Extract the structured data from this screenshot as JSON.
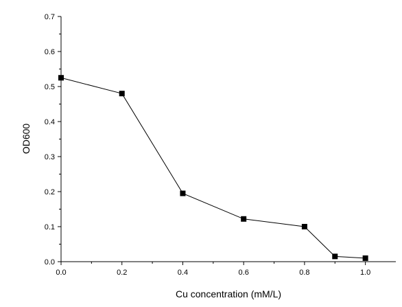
{
  "chart_data": {
    "type": "line",
    "title": "",
    "xlabel": "Cu concentration (mM/L)",
    "ylabel": "OD600",
    "xlim": [
      0.0,
      1.1
    ],
    "ylim": [
      0.0,
      0.7
    ],
    "x_ticks": [
      "0.0",
      "0.2",
      "0.4",
      "0.6",
      "0.8",
      "1.0"
    ],
    "y_ticks": [
      "0.0",
      "0.1",
      "0.2",
      "0.3",
      "0.4",
      "0.5",
      "0.6",
      "0.7"
    ],
    "grid": false,
    "legend": "none",
    "series": [
      {
        "marker": "square",
        "color": "#000000",
        "x": [
          0.0,
          0.2,
          0.4,
          0.6,
          0.8,
          0.9,
          1.0
        ],
        "y": [
          0.525,
          0.48,
          0.195,
          0.122,
          0.1,
          0.015,
          0.01
        ]
      }
    ]
  }
}
